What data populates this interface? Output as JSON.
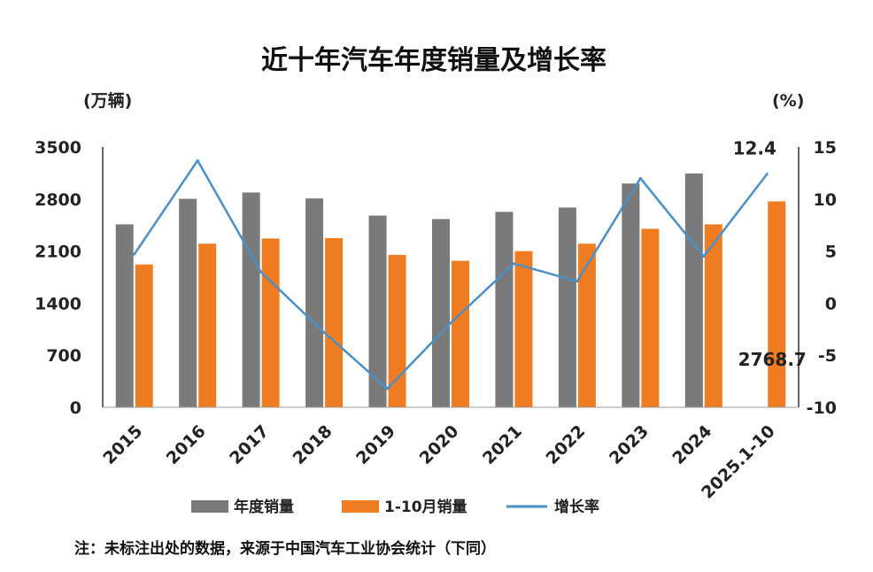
{
  "chart_data": {
    "type": "bar",
    "title": "近十年汽车年度销量及增长率",
    "ylabel_left": "(万辆)",
    "ylabel_right": "(%)",
    "categories": [
      "2015",
      "2016",
      "2017",
      "2018",
      "2019",
      "2020",
      "2021",
      "2022",
      "2023",
      "2024",
      "2025.1-10"
    ],
    "ylim_left": [
      0,
      3500
    ],
    "yticks_left": [
      "3500",
      "2800",
      "2100",
      "1400",
      "700",
      "0"
    ],
    "ylim_right": [
      -10,
      15
    ],
    "yticks_right": [
      "15",
      "10",
      "5",
      "0",
      "-5",
      "-10"
    ],
    "series": [
      {
        "name": "年度销量",
        "kind": "bar",
        "color": "#7a7a7a",
        "values": [
          2460,
          2803,
          2888,
          2808,
          2577,
          2531,
          2628,
          2686,
          3009,
          3144,
          null
        ]
      },
      {
        "name": "1-10月销量",
        "kind": "bar",
        "color": "#f07c22",
        "values": [
          1920,
          2200,
          2270,
          2275,
          2050,
          1970,
          2100,
          2200,
          2400,
          2460,
          2768.7
        ]
      },
      {
        "name": "增长率",
        "kind": "line",
        "axis": "right",
        "color": "#4a90c8",
        "values": [
          4.7,
          13.7,
          3.0,
          -2.8,
          -8.2,
          -1.9,
          3.8,
          2.1,
          12.0,
          4.5,
          12.4
        ]
      }
    ],
    "annotations": [
      "12.4",
      "2768.7"
    ],
    "legend_position": "bottom",
    "grid": false
  },
  "footnote": "注：未标注出处的数据，来源于中国汽车工业协会统计（下同）"
}
